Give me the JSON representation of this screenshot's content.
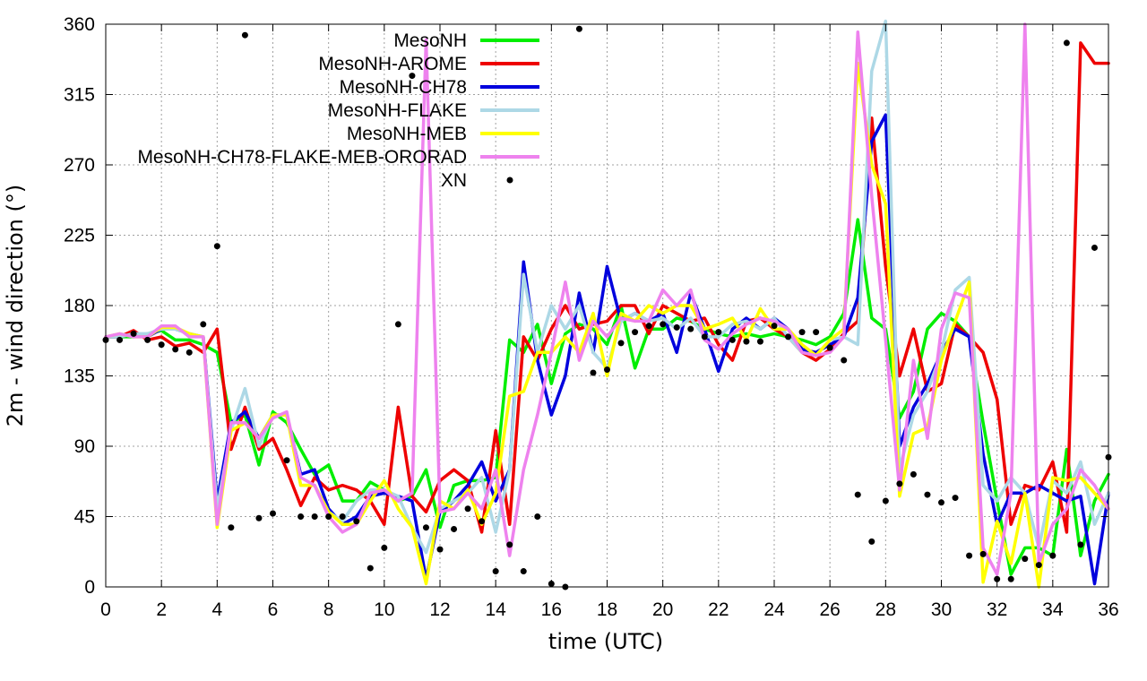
{
  "chart_data": {
    "type": "line",
    "xlabel": "time (UTC)",
    "ylabel": "2m - wind direction (°)",
    "xlim": [
      0,
      36
    ],
    "ylim": [
      0,
      360
    ],
    "xticks": [
      "0",
      "2",
      "4",
      "6",
      "8",
      "10",
      "12",
      "14",
      "16",
      "18",
      "20",
      "22",
      "24",
      "26",
      "28",
      "30",
      "32",
      "34",
      "36"
    ],
    "yticks": [
      "0",
      "45",
      "90",
      "135",
      "180",
      "225",
      "270",
      "315",
      "360"
    ],
    "grid": true,
    "legend_position": "top-center",
    "series": [
      {
        "name": "MesoNH",
        "color": "#00ee00",
        "x": [
          0,
          0.5,
          1,
          1.5,
          2,
          2.5,
          3,
          3.5,
          4,
          4.5,
          5,
          5.5,
          6,
          6.5,
          7,
          7.5,
          8,
          8.5,
          9,
          9.5,
          10,
          10.5,
          11,
          11.5,
          12,
          12.5,
          13,
          13.5,
          14,
          14.5,
          15,
          15.5,
          16,
          16.5,
          17,
          17.5,
          18,
          18.5,
          19,
          19.5,
          20,
          20.5,
          21,
          21.5,
          22,
          22.5,
          23,
          23.5,
          24,
          24.5,
          25,
          25.5,
          26,
          26.5,
          27,
          27.5,
          28,
          28.5,
          29,
          29.5,
          30,
          30.5,
          31,
          31.5,
          32,
          32.5,
          33,
          33.5,
          34,
          34.5,
          35,
          35.5,
          36
        ],
        "y": [
          160,
          160,
          160,
          162,
          164,
          158,
          158,
          155,
          150,
          105,
          110,
          78,
          112,
          105,
          88,
          72,
          78,
          55,
          55,
          67,
          62,
          55,
          58,
          75,
          38,
          65,
          68,
          68,
          70,
          158,
          150,
          168,
          130,
          162,
          168,
          165,
          155,
          180,
          140,
          165,
          165,
          172,
          170,
          165,
          162,
          160,
          162,
          160,
          162,
          160,
          158,
          155,
          160,
          175,
          235,
          172,
          165,
          108,
          125,
          165,
          175,
          170,
          160,
          105,
          55,
          8,
          25,
          25,
          20,
          88,
          20,
          55,
          72
        ]
      },
      {
        "name": "MesoNH-AROME",
        "color": "#ee0000",
        "x": [
          0,
          0.5,
          1,
          1.5,
          2,
          2.5,
          3,
          3.5,
          4,
          4.5,
          5,
          5.5,
          6,
          6.5,
          7,
          7.5,
          8,
          8.5,
          9,
          9.5,
          10,
          10.5,
          11,
          11.5,
          12,
          12.5,
          13,
          13.5,
          14,
          14.5,
          15,
          15.5,
          16,
          16.5,
          17,
          17.5,
          18,
          18.5,
          19,
          19.5,
          20,
          20.5,
          21,
          21.5,
          22,
          22.5,
          23,
          23.5,
          24,
          24.5,
          25,
          25.5,
          26,
          26.5,
          27,
          27.5,
          28,
          28.5,
          29,
          29.5,
          30,
          30.5,
          31,
          31.5,
          32,
          32.5,
          33,
          33.5,
          34,
          34.5,
          35,
          35.5,
          36
        ],
        "y": [
          160,
          160,
          164,
          158,
          160,
          154,
          156,
          150,
          165,
          88,
          115,
          88,
          95,
          75,
          52,
          70,
          62,
          65,
          62,
          55,
          40,
          115,
          58,
          48,
          68,
          75,
          68,
          35,
          100,
          40,
          160,
          145,
          165,
          180,
          165,
          168,
          170,
          180,
          180,
          162,
          180,
          175,
          170,
          172,
          155,
          145,
          170,
          172,
          165,
          160,
          150,
          145,
          152,
          162,
          170,
          300,
          205,
          135,
          165,
          125,
          130,
          168,
          160,
          150,
          120,
          40,
          65,
          62,
          80,
          35,
          348,
          335,
          335
        ]
      },
      {
        "name": "MesoNH-CH78",
        "color": "#0000dd",
        "x": [
          0,
          0.5,
          1,
          1.5,
          2,
          2.5,
          3,
          3.5,
          4,
          4.5,
          5,
          5.5,
          6,
          6.5,
          7,
          7.5,
          8,
          8.5,
          9,
          9.5,
          10,
          10.5,
          11,
          11.5,
          12,
          12.5,
          13,
          13.5,
          14,
          14.5,
          15,
          15.5,
          16,
          16.5,
          17,
          17.5,
          18,
          18.5,
          19,
          19.5,
          20,
          20.5,
          21,
          21.5,
          22,
          22.5,
          23,
          23.5,
          24,
          24.5,
          25,
          25.5,
          26,
          26.5,
          27,
          27.5,
          28,
          28.5,
          29,
          29.5,
          30,
          30.5,
          31,
          31.5,
          32,
          32.5,
          33,
          33.5,
          34,
          34.5,
          35,
          35.5,
          36
        ],
        "y": [
          160,
          160,
          162,
          160,
          165,
          165,
          162,
          160,
          55,
          105,
          112,
          95,
          110,
          110,
          72,
          75,
          50,
          40,
          45,
          58,
          60,
          58,
          55,
          5,
          48,
          55,
          65,
          80,
          55,
          75,
          208,
          145,
          110,
          135,
          188,
          150,
          205,
          170,
          175,
          170,
          175,
          150,
          188,
          165,
          138,
          165,
          172,
          165,
          172,
          165,
          152,
          150,
          155,
          160,
          185,
          285,
          302,
          90,
          115,
          130,
          150,
          165,
          160,
          85,
          40,
          60,
          60,
          65,
          60,
          55,
          58,
          2,
          60
        ]
      },
      {
        "name": "MesoNH-FLAKE",
        "color": "#add8e6",
        "x": [
          0,
          0.5,
          1,
          1.5,
          2,
          2.5,
          3,
          3.5,
          4,
          4.5,
          5,
          5.5,
          6,
          6.5,
          7,
          7.5,
          8,
          8.5,
          9,
          9.5,
          10,
          10.5,
          11,
          11.5,
          12,
          12.5,
          13,
          13.5,
          14,
          14.5,
          15,
          15.5,
          16,
          16.5,
          17,
          17.5,
          18,
          18.5,
          19,
          19.5,
          20,
          20.5,
          21,
          21.5,
          22,
          22.5,
          23,
          23.5,
          24,
          24.5,
          25,
          25.5,
          26,
          26.5,
          27,
          27.5,
          28,
          28.5,
          29,
          29.5,
          30,
          30.5,
          31,
          31.5,
          32,
          32.5,
          33,
          33.5,
          34,
          34.5,
          35,
          35.5,
          36
        ],
        "y": [
          160,
          160,
          162,
          162,
          165,
          165,
          162,
          160,
          50,
          100,
          127,
          90,
          110,
          110,
          65,
          65,
          48,
          42,
          55,
          62,
          62,
          58,
          38,
          22,
          50,
          55,
          60,
          70,
          35,
          75,
          200,
          150,
          180,
          165,
          180,
          150,
          140,
          170,
          175,
          170,
          172,
          165,
          172,
          160,
          160,
          168,
          170,
          165,
          172,
          160,
          150,
          148,
          158,
          160,
          155,
          330,
          362,
          75,
          110,
          125,
          150,
          190,
          198,
          65,
          55,
          70,
          60,
          25,
          68,
          60,
          80,
          40,
          60
        ]
      },
      {
        "name": "MesoNH-MEB",
        "color": "#ffff00",
        "x": [
          0,
          0.5,
          1,
          1.5,
          2,
          2.5,
          3,
          3.5,
          4,
          4.5,
          5,
          5.5,
          6,
          6.5,
          7,
          7.5,
          8,
          8.5,
          9,
          9.5,
          10,
          10.5,
          11,
          11.5,
          12,
          12.5,
          13,
          13.5,
          14,
          14.5,
          15,
          15.5,
          16,
          16.5,
          17,
          17.5,
          18,
          18.5,
          19,
          19.5,
          20,
          20.5,
          21,
          21.5,
          22,
          22.5,
          23,
          23.5,
          24,
          24.5,
          25,
          25.5,
          26,
          26.5,
          27,
          27.5,
          28,
          28.5,
          29,
          29.5,
          30,
          30.5,
          31,
          31.5,
          32,
          32.5,
          33,
          33.5,
          34,
          34.5,
          35,
          35.5,
          36
        ],
        "y": [
          160,
          162,
          160,
          160,
          166,
          166,
          162,
          160,
          38,
          100,
          105,
          95,
          110,
          110,
          65,
          65,
          48,
          40,
          40,
          55,
          68,
          50,
          38,
          2,
          55,
          50,
          62,
          40,
          60,
          122,
          125,
          150,
          150,
          160,
          150,
          175,
          135,
          175,
          170,
          180,
          175,
          180,
          180,
          165,
          168,
          172,
          158,
          178,
          165,
          165,
          155,
          148,
          158,
          165,
          335,
          270,
          245,
          58,
          98,
          102,
          145,
          170,
          195,
          3,
          42,
          15,
          60,
          0,
          70,
          68,
          70,
          60,
          50
        ]
      },
      {
        "name": "MesoNH-CH78-FLAKE-MEB-ORORAD",
        "color": "#ee82ee",
        "x": [
          0,
          0.5,
          1,
          1.5,
          2,
          2.5,
          3,
          3.5,
          4,
          4.5,
          5,
          5.5,
          6,
          6.5,
          7,
          7.5,
          8,
          8.5,
          9,
          9.5,
          10,
          10.5,
          11,
          11.5,
          12,
          12.5,
          13,
          13.5,
          14,
          14.5,
          15,
          15.5,
          16,
          16.5,
          17,
          17.5,
          18,
          18.5,
          19,
          19.5,
          20,
          20.5,
          21,
          21.5,
          22,
          22.5,
          23,
          23.5,
          24,
          24.5,
          25,
          25.5,
          26,
          26.5,
          27,
          27.5,
          28,
          28.5,
          29,
          29.5,
          30,
          30.5,
          31,
          31.5,
          32,
          32.5,
          33,
          33.5,
          34,
          34.5,
          35,
          35.5,
          36
        ],
        "y": [
          160,
          162,
          160,
          160,
          167,
          167,
          160,
          160,
          40,
          105,
          105,
          95,
          108,
          112,
          70,
          65,
          45,
          35,
          40,
          60,
          62,
          55,
          60,
          350,
          48,
          50,
          60,
          50,
          75,
          20,
          75,
          110,
          150,
          195,
          145,
          170,
          160,
          172,
          170,
          170,
          190,
          180,
          190,
          158,
          152,
          162,
          168,
          172,
          170,
          165,
          150,
          148,
          150,
          160,
          355,
          250,
          158,
          62,
          145,
          95,
          165,
          188,
          185,
          25,
          8,
          60,
          360,
          15,
          40,
          50,
          75,
          65,
          50
        ]
      }
    ],
    "scatter": {
      "name": "XN",
      "color": "#000000",
      "x": [
        0,
        0.5,
        1,
        1.5,
        2,
        2.5,
        3,
        3.5,
        4,
        4.5,
        5,
        5.5,
        6,
        6.5,
        7,
        7.5,
        8,
        8.5,
        9,
        9.5,
        10,
        10.5,
        11,
        11.5,
        12,
        12.5,
        13,
        13.5,
        14,
        14.5,
        15,
        15.5,
        16,
        16.5,
        17,
        17.5,
        18,
        18.5,
        19,
        19.5,
        20,
        20.5,
        21,
        21.5,
        22,
        22.5,
        23,
        23.5,
        24,
        24.5,
        25,
        25.5,
        26,
        26.5,
        27,
        27.5,
        28,
        28.5,
        29,
        29.5,
        30,
        30.5,
        31,
        31.5,
        32,
        32.5,
        33,
        33.5,
        34,
        34.5,
        35,
        35.5,
        36
      ],
      "y": [
        158,
        158,
        162,
        158,
        155,
        152,
        150,
        168,
        218,
        38,
        353,
        44,
        47,
        81,
        45,
        45,
        45,
        45,
        42,
        12,
        25,
        168,
        327,
        38,
        24,
        37,
        50,
        42,
        10,
        27,
        10,
        45,
        2,
        0,
        357,
        137,
        139,
        156,
        163,
        167,
        168,
        166,
        165,
        160,
        163,
        158,
        157,
        157,
        167,
        160,
        163,
        163,
        153,
        145,
        59,
        29,
        55,
        66,
        72,
        59,
        54,
        57,
        20,
        21,
        5,
        5,
        18,
        14,
        20,
        348,
        27,
        217,
        83
      ]
    }
  }
}
